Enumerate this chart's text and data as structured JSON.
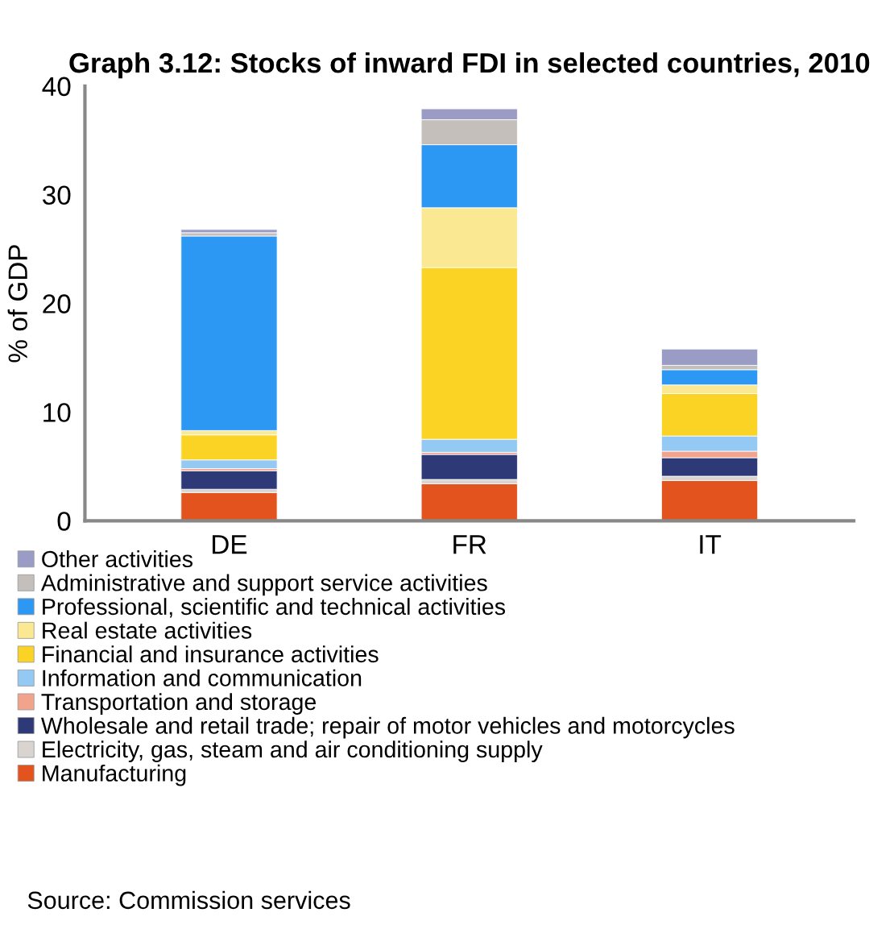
{
  "chart_data": {
    "type": "bar",
    "stacked": true,
    "title": "Graph 3.12: Stocks of inward FDI in selected countries, 2010",
    "ylabel": "% of GDP",
    "categories": [
      "DE",
      "FR",
      "IT"
    ],
    "series": [
      {
        "name": "Manufacturing",
        "color": "#e2531e",
        "values": [
          2.6,
          3.4,
          3.7
        ]
      },
      {
        "name": "Electricity, gas, steam and air conditioning supply",
        "color": "#d9d4cf",
        "values": [
          0.3,
          0.4,
          0.4
        ]
      },
      {
        "name": "Wholesale and retail trade; repair of motor vehicles and motorcycles",
        "color": "#2e3a78",
        "values": [
          1.7,
          2.3,
          1.7
        ]
      },
      {
        "name": "Transportation and storage",
        "color": "#f2a38c",
        "values": [
          0.2,
          0.2,
          0.6
        ]
      },
      {
        "name": "Information and communication",
        "color": "#93c9f3",
        "values": [
          0.8,
          1.2,
          1.4
        ]
      },
      {
        "name": "Financial and insurance activities",
        "color": "#fbd325",
        "values": [
          2.3,
          15.8,
          3.9
        ]
      },
      {
        "name": "Real estate activities",
        "color": "#fbe892",
        "values": [
          0.4,
          5.5,
          0.8
        ]
      },
      {
        "name": "Professional, scientific and technical activities",
        "color": "#2d98f3",
        "values": [
          17.9,
          5.8,
          1.4
        ]
      },
      {
        "name": "Administrative and support service activities",
        "color": "#c5bfbb",
        "values": [
          0.3,
          2.3,
          0.4
        ]
      },
      {
        "name": "Other activities",
        "color": "#9a9cc6",
        "values": [
          0.3,
          1.0,
          1.5
        ]
      }
    ],
    "ylim": [
      0,
      40
    ],
    "yticks": [
      0,
      10,
      20,
      30,
      40
    ],
    "grid": false,
    "legend": "bottom",
    "annotations": [
      "Source: Commission services"
    ]
  }
}
